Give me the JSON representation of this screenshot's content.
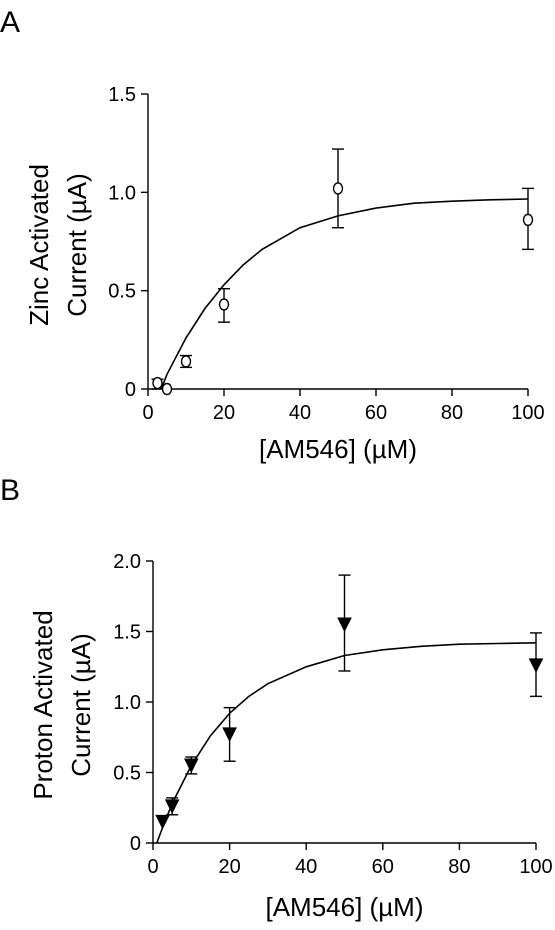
{
  "chart_data": [
    {
      "panel_label": "A",
      "type": "scatter",
      "marker": "open-circle",
      "xlabel": "[AM546] (µM)",
      "ylabel_lines": [
        "Zinc Activated",
        "Current (µA)"
      ],
      "xlim": [
        0,
        100
      ],
      "ylim": [
        0,
        1.5
      ],
      "x_ticks": [
        0,
        20,
        40,
        60,
        80,
        100
      ],
      "x_tick_labels": [
        "0",
        "20",
        "40",
        "60",
        "80",
        "100"
      ],
      "y_ticks": [
        0,
        0.5,
        1.0,
        1.5
      ],
      "y_tick_labels": [
        "0",
        "0.5",
        "1.0",
        "1.5"
      ],
      "points": [
        {
          "x": 2.5,
          "y": 0.03,
          "err_low": 0.0,
          "err_high": 0.05
        },
        {
          "x": 5,
          "y": 0.0,
          "err_low": 0.0,
          "err_high": 0.0
        },
        {
          "x": 10,
          "y": 0.14,
          "err_low": 0.11,
          "err_high": 0.17
        },
        {
          "x": 20,
          "y": 0.43,
          "err_low": 0.34,
          "err_high": 0.51
        },
        {
          "x": 50,
          "y": 1.02,
          "err_low": 0.82,
          "err_high": 1.22
        },
        {
          "x": 100,
          "y": 0.86,
          "err_low": 0.71,
          "err_high": 1.02
        }
      ],
      "fit_curve": [
        {
          "x": 3.5,
          "y": 0.0
        },
        {
          "x": 5,
          "y": 0.075
        },
        {
          "x": 10,
          "y": 0.26
        },
        {
          "x": 15,
          "y": 0.41
        },
        {
          "x": 20,
          "y": 0.53
        },
        {
          "x": 25,
          "y": 0.63
        },
        {
          "x": 30,
          "y": 0.71
        },
        {
          "x": 40,
          "y": 0.82
        },
        {
          "x": 50,
          "y": 0.88
        },
        {
          "x": 60,
          "y": 0.92
        },
        {
          "x": 70,
          "y": 0.945
        },
        {
          "x": 80,
          "y": 0.955
        },
        {
          "x": 90,
          "y": 0.962
        },
        {
          "x": 100,
          "y": 0.966
        }
      ]
    },
    {
      "panel_label": "B",
      "type": "scatter",
      "marker": "filled-down-triangle",
      "xlabel": "[AM546] (µM)",
      "ylabel_lines": [
        "Proton Activated",
        "Current (µA)"
      ],
      "xlim": [
        0,
        100
      ],
      "ylim": [
        0,
        2.0
      ],
      "x_ticks": [
        0,
        20,
        40,
        60,
        80,
        100
      ],
      "x_tick_labels": [
        "0",
        "20",
        "40",
        "60",
        "80",
        "100"
      ],
      "y_ticks": [
        0,
        0.5,
        1.0,
        1.5,
        2.0
      ],
      "y_tick_labels": [
        "0",
        "0.5",
        "1.0",
        "1.5",
        "2.0"
      ],
      "points": [
        {
          "x": 2.5,
          "y": 0.15,
          "err_low": 0.15,
          "err_high": 0.15
        },
        {
          "x": 5,
          "y": 0.26,
          "err_low": 0.2,
          "err_high": 0.32
        },
        {
          "x": 10,
          "y": 0.55,
          "err_low": 0.49,
          "err_high": 0.61
        },
        {
          "x": 20,
          "y": 0.77,
          "err_low": 0.58,
          "err_high": 0.96
        },
        {
          "x": 50,
          "y": 1.55,
          "err_low": 1.22,
          "err_high": 1.9
        },
        {
          "x": 100,
          "y": 1.26,
          "err_low": 1.04,
          "err_high": 1.49
        }
      ],
      "fit_curve": [
        {
          "x": 1.0,
          "y": 0.0
        },
        {
          "x": 2.5,
          "y": 0.11
        },
        {
          "x": 5,
          "y": 0.28
        },
        {
          "x": 10,
          "y": 0.55
        },
        {
          "x": 15,
          "y": 0.76
        },
        {
          "x": 20,
          "y": 0.92
        },
        {
          "x": 25,
          "y": 1.04
        },
        {
          "x": 30,
          "y": 1.13
        },
        {
          "x": 40,
          "y": 1.25
        },
        {
          "x": 50,
          "y": 1.33
        },
        {
          "x": 60,
          "y": 1.37
        },
        {
          "x": 70,
          "y": 1.395
        },
        {
          "x": 80,
          "y": 1.41
        },
        {
          "x": 90,
          "y": 1.415
        },
        {
          "x": 100,
          "y": 1.42
        }
      ]
    }
  ]
}
